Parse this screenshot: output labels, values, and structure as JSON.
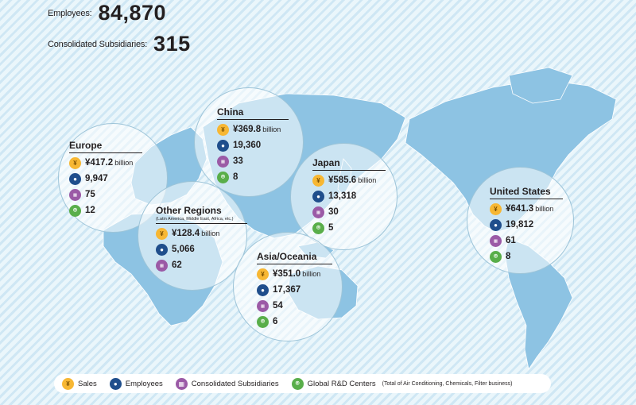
{
  "summary": {
    "employees_label": "Employees:",
    "employees_value": "84,870",
    "subsidiaries_label": "Consolidated Subsidiaries:",
    "subsidiaries_value": "315"
  },
  "regions": {
    "europe": {
      "name": "Europe",
      "sales": "¥417.2",
      "sales_unit": "billion",
      "employees": "9,947",
      "subsidiaries": "75",
      "rd": "12"
    },
    "china": {
      "name": "China",
      "sales": "¥369.8",
      "sales_unit": "billion",
      "employees": "19,360",
      "subsidiaries": "33",
      "rd": "8"
    },
    "japan": {
      "name": "Japan",
      "sales": "¥585.6",
      "sales_unit": "billion",
      "employees": "13,318",
      "subsidiaries": "30",
      "rd": "5"
    },
    "other": {
      "name": "Other Regions",
      "note": "(Latin America, Middle East, Africa, etc.)",
      "sales": "¥128.4",
      "sales_unit": "billion",
      "employees": "5,066",
      "subsidiaries": "62"
    },
    "asia": {
      "name": "Asia/Oceania",
      "sales": "¥351.0",
      "sales_unit": "billion",
      "employees": "17,367",
      "subsidiaries": "54",
      "rd": "6"
    },
    "us": {
      "name": "United States",
      "sales": "¥641.3",
      "sales_unit": "billion",
      "employees": "19,812",
      "subsidiaries": "61",
      "rd": "8"
    }
  },
  "legend": {
    "sales": "Sales",
    "employees": "Employees",
    "subsidiaries": "Consolidated Subsidiaries",
    "rd": "Global R&D Centers",
    "rd_note": "(Total of Air Conditioning, Chemicals, Filter business)"
  },
  "colors": {
    "land": "#8dc3e3",
    "sales_icon": "#f7b733",
    "employees_icon": "#1f4e8c",
    "subsidiaries_icon": "#9b5aa6",
    "rd_icon": "#59ae4a"
  }
}
